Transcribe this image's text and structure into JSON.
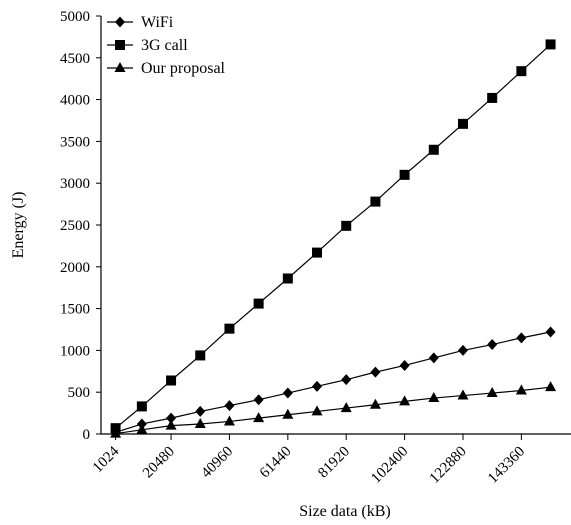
{
  "chart_data": {
    "type": "line",
    "title": "",
    "xlabel": "Size data (kB)",
    "ylabel": "Energy (J)",
    "x_tick_labels": [
      "1024",
      "20480",
      "40960",
      "61440",
      "81920",
      "102400",
      "122880",
      "143360"
    ],
    "x_tick_values": [
      1024,
      20480,
      40960,
      61440,
      81920,
      102400,
      122880,
      143360
    ],
    "x": [
      1024,
      10240,
      20480,
      30720,
      40960,
      51200,
      61440,
      71680,
      81920,
      92160,
      102400,
      112640,
      122880,
      133120,
      143360,
      153600
    ],
    "y_ticks": [
      0,
      500,
      1000,
      1500,
      2000,
      2500,
      3000,
      3500,
      4000,
      4500,
      5000
    ],
    "xlim": [
      -4096,
      160768
    ],
    "ylim": [
      0,
      5000
    ],
    "grid": false,
    "legend_position": "top-left",
    "series": [
      {
        "name": "WiFi",
        "marker": "diamond",
        "values": [
          20,
          120,
          190,
          270,
          340,
          410,
          490,
          570,
          650,
          740,
          820,
          910,
          1000,
          1070,
          1150,
          1220
        ]
      },
      {
        "name": "3G call",
        "marker": "square",
        "values": [
          70,
          330,
          640,
          940,
          1260,
          1560,
          1860,
          2170,
          2490,
          2780,
          3100,
          3400,
          3710,
          4020,
          4340,
          4660
        ]
      },
      {
        "name": "Our proposal",
        "marker": "triangle",
        "values": [
          5,
          50,
          100,
          120,
          150,
          190,
          230,
          270,
          310,
          350,
          390,
          430,
          460,
          490,
          520,
          560
        ]
      }
    ]
  }
}
